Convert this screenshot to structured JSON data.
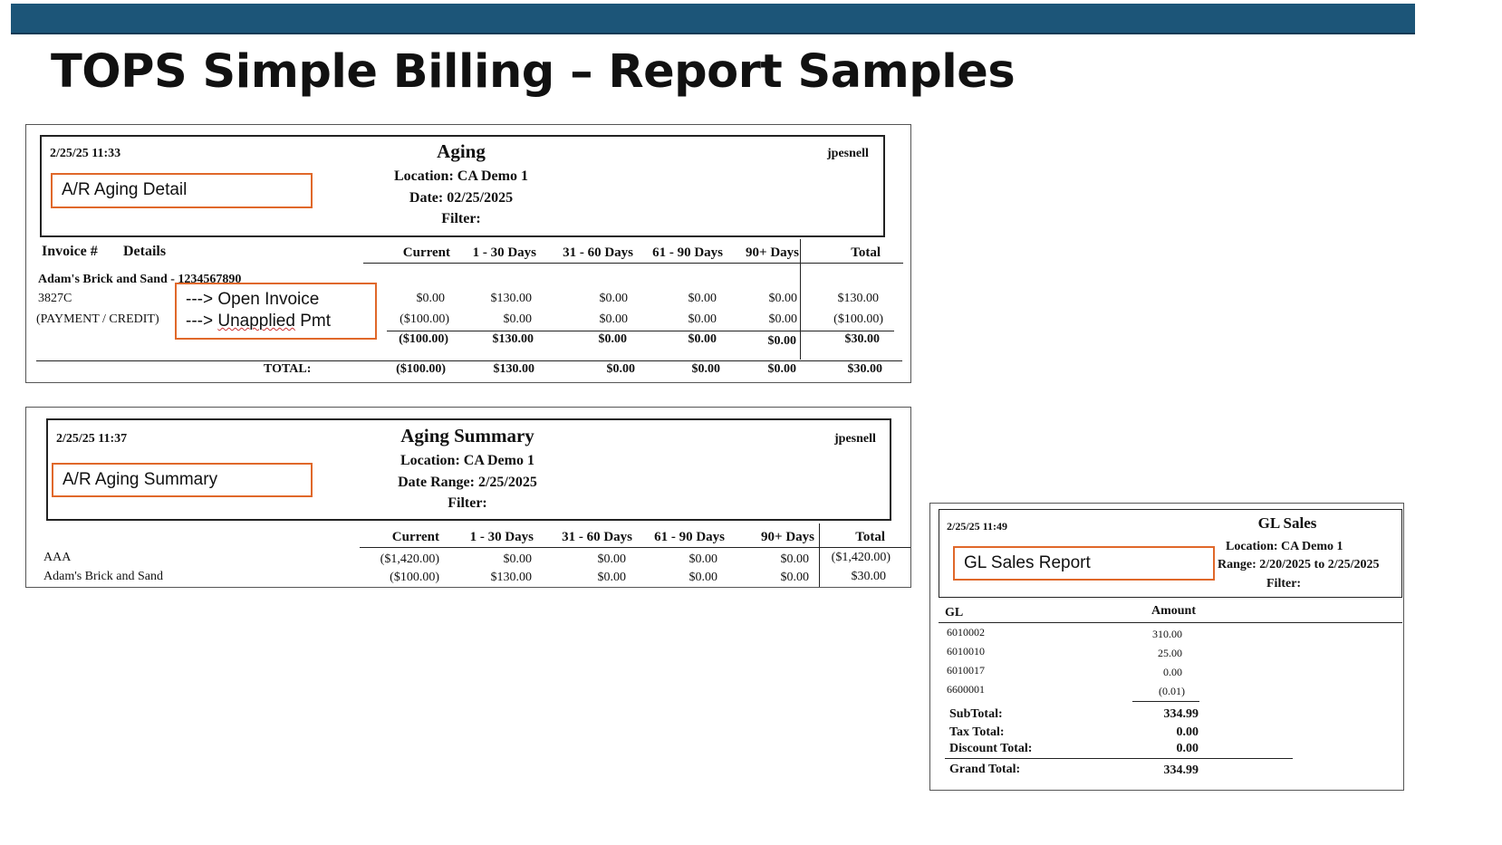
{
  "slide_title": "TOPS Simple Billing – Report Samples",
  "aging_detail": {
    "timestamp": "2/25/25 11:33",
    "title": "Aging",
    "location": "Location: CA Demo 1",
    "date": "Date: 02/25/2025",
    "filter": "Filter:",
    "user": "jpesnell",
    "callout": "A/R Aging Detail",
    "col_invoice": "Invoice #",
    "col_details": "Details",
    "columns": [
      "Current",
      "1 - 30 Days",
      "31 - 60 Days",
      "61 - 90 Days",
      "90+ Days",
      "Total"
    ],
    "customer": "Adam's Brick and Sand - 1234567890",
    "rows": [
      {
        "label": "3827C",
        "values": [
          "$0.00",
          "$130.00",
          "$0.00",
          "$0.00",
          "$0.00",
          "$130.00"
        ]
      },
      {
        "label": "(PAYMENT / CREDIT)",
        "values": [
          "($100.00)",
          "$0.00",
          "$0.00",
          "$0.00",
          "$0.00",
          "($100.00)"
        ]
      }
    ],
    "subtotal": [
      "($100.00)",
      "$130.00",
      "$0.00",
      "$0.00",
      "$0.00",
      "$30.00"
    ],
    "total_label": "TOTAL:",
    "total": [
      "($100.00)",
      "$130.00",
      "$0.00",
      "$0.00",
      "$0.00",
      "$30.00"
    ],
    "annotation_line1_prefix": "--->",
    "annotation_line1_text": "Open Invoice",
    "annotation_line2_prefix": "--->",
    "annotation_line2_word": "Unapplied",
    "annotation_line2_suffix": "Pmt"
  },
  "aging_summary": {
    "timestamp": "2/25/25 11:37",
    "title": "Aging Summary",
    "location": "Location: CA Demo 1",
    "date": "Date Range: 2/25/2025",
    "filter": "Filter:",
    "user": "jpesnell",
    "callout": "A/R Aging Summary",
    "columns": [
      "Current",
      "1 - 30 Days",
      "31 - 60 Days",
      "61 - 90 Days",
      "90+ Days",
      "Total"
    ],
    "rows": [
      {
        "label": "AAA",
        "values": [
          "($1,420.00)",
          "$0.00",
          "$0.00",
          "$0.00",
          "$0.00",
          "($1,420.00)"
        ]
      },
      {
        "label": "Adam's Brick and Sand",
        "values": [
          "($100.00)",
          "$130.00",
          "$0.00",
          "$0.00",
          "$0.00",
          "$30.00"
        ]
      }
    ]
  },
  "gl_sales": {
    "timestamp": "2/25/25 11:49",
    "title": "GL Sales",
    "location": "Location: CA Demo 1",
    "range": "Range: 2/20/2025 to 2/25/2025",
    "filter": "Filter:",
    "callout": "GL Sales Report",
    "col_gl": "GL",
    "col_amount": "Amount",
    "rows": [
      {
        "gl": "6010002",
        "amount": "310.00"
      },
      {
        "gl": "6010010",
        "amount": "25.00"
      },
      {
        "gl": "6010017",
        "amount": "0.00"
      },
      {
        "gl": "6600001",
        "amount": "(0.01)"
      }
    ],
    "subtotal_label": "SubTotal:",
    "subtotal": "334.99",
    "tax_label": "Tax Total:",
    "tax": "0.00",
    "discount_label": "Discount Total:",
    "discount": "0.00",
    "grand_label": "Grand Total:",
    "grand": "334.99"
  }
}
